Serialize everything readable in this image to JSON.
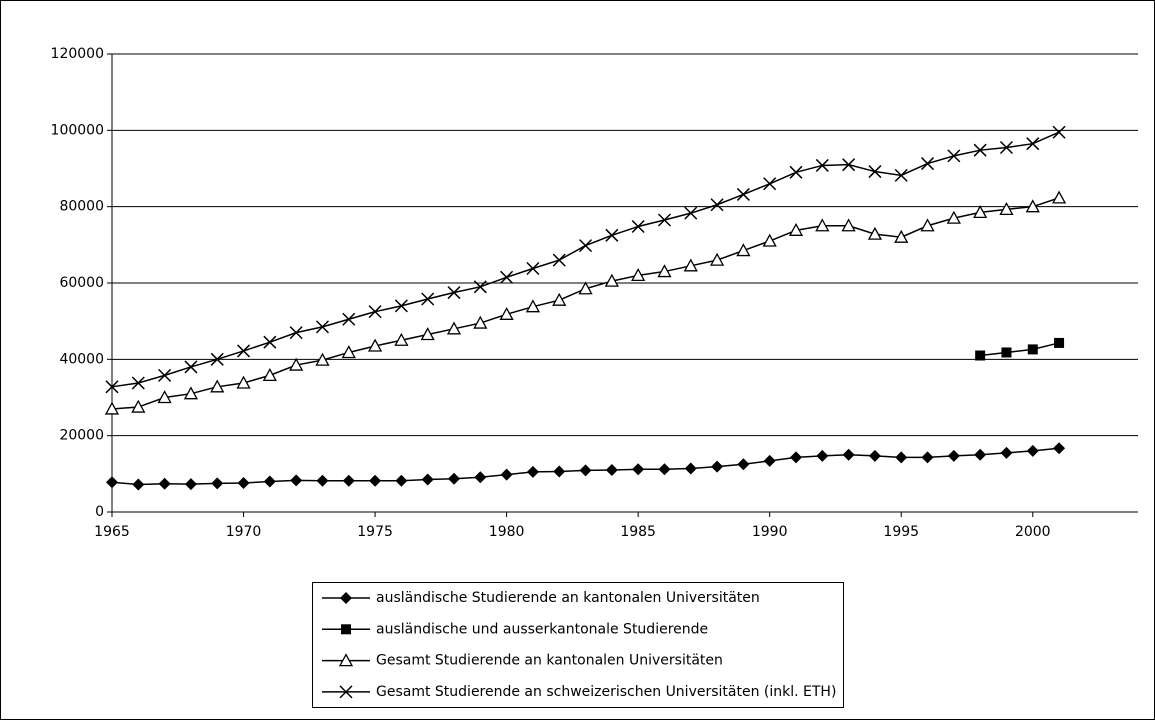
{
  "chart_data": {
    "type": "line",
    "x": [
      1965,
      1966,
      1967,
      1968,
      1969,
      1970,
      1971,
      1972,
      1973,
      1974,
      1975,
      1976,
      1977,
      1978,
      1979,
      1980,
      1981,
      1982,
      1983,
      1984,
      1985,
      1986,
      1987,
      1988,
      1989,
      1990,
      1991,
      1992,
      1993,
      1994,
      1995,
      1996,
      1997,
      1998,
      1999,
      2000,
      2001
    ],
    "xlim": [
      1965,
      2004
    ],
    "xticks": [
      1965,
      1970,
      1975,
      1980,
      1985,
      1990,
      1995,
      2000
    ],
    "ylim": [
      0,
      120000
    ],
    "yticks": [
      0,
      20000,
      40000,
      60000,
      80000,
      100000,
      120000
    ],
    "grid": true,
    "legend": "bottom",
    "series": [
      {
        "name": "ausländische Studierende an kantonalen Universitäten",
        "color": "#000000",
        "marker": "diamond",
        "values": [
          7800,
          7200,
          7400,
          7300,
          7500,
          7600,
          8000,
          8300,
          8200,
          8200,
          8200,
          8200,
          8500,
          8700,
          9100,
          9800,
          10500,
          10600,
          10900,
          11000,
          11200,
          11200,
          11400,
          11900,
          12500,
          13400,
          14300,
          14700,
          15000,
          14700,
          14300,
          14300,
          14700,
          15000,
          15500,
          16000,
          16700
        ]
      },
      {
        "name": "ausländische und ausserkantonale Studierende",
        "color": "#000000",
        "marker": "square",
        "values": [
          null,
          null,
          null,
          null,
          null,
          null,
          null,
          null,
          null,
          null,
          null,
          null,
          null,
          null,
          null,
          null,
          null,
          null,
          null,
          null,
          null,
          null,
          null,
          null,
          null,
          null,
          null,
          null,
          null,
          null,
          null,
          null,
          null,
          41000,
          41800,
          42600,
          44300
        ]
      },
      {
        "name": "Gesamt Studierende an kantonalen Universitäten",
        "color": "#000000",
        "marker": "triangle",
        "values": [
          27000,
          27500,
          30000,
          31000,
          32800,
          33800,
          35800,
          38500,
          39800,
          41800,
          43500,
          45000,
          46500,
          48000,
          49500,
          51800,
          53800,
          55500,
          58500,
          60500,
          62000,
          63000,
          64500,
          66000,
          68500,
          71000,
          73800,
          75000,
          75000,
          72800,
          72000,
          75000,
          77000,
          78500,
          79300,
          80000,
          82300
        ]
      },
      {
        "name": "Gesamt Studierende an schweizerischen Universitäten (inkl. ETH)",
        "color": "#000000",
        "marker": "x",
        "values": [
          32800,
          33800,
          35800,
          38000,
          40000,
          42200,
          44500,
          47000,
          48500,
          50500,
          52500,
          54000,
          55800,
          57500,
          59000,
          61500,
          63800,
          66000,
          69800,
          72500,
          74800,
          76500,
          78300,
          80500,
          83200,
          86000,
          89000,
          90800,
          91000,
          89200,
          88200,
          91300,
          93300,
          94800,
          95500,
          96500,
          99500
        ]
      }
    ]
  }
}
